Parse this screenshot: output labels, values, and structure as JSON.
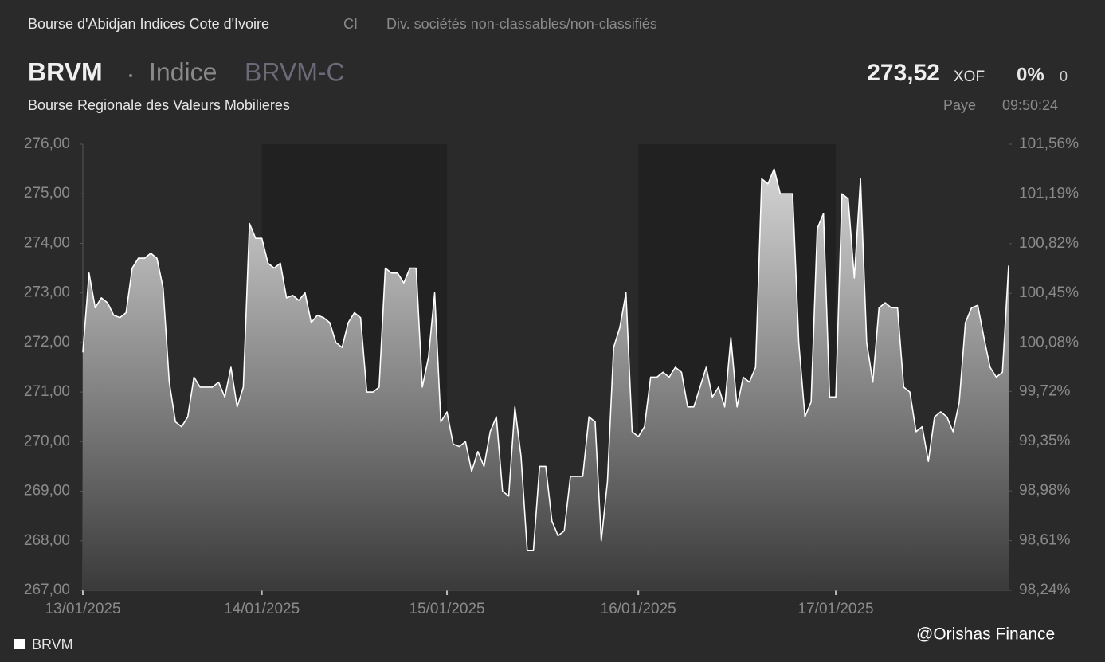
{
  "header": {
    "exchange": "Bourse d'Abidjan Indices Cote d'Ivoire",
    "country": "CI",
    "sector": "Div. sociétés non-classables/non-classifiés",
    "symbol": "BRVM",
    "instrument_type": "Indice",
    "code": "BRVM-C",
    "name": "Bourse Regionale des Valeurs Mobilieres",
    "price": "273,52",
    "currency": "XOF",
    "change_pct": "0%",
    "change": "0",
    "status": "Paye",
    "time": "09:50:24",
    "watermark": "@Orishas Finance"
  },
  "chart_data": {
    "type": "area",
    "xlim": [
      0,
      150
    ],
    "xticks": [
      {
        "value": 0,
        "label": "13/01/2025"
      },
      {
        "value": 29,
        "label": "14/01/2025"
      },
      {
        "value": 59,
        "label": "15/01/2025"
      },
      {
        "value": 90,
        "label": "16/01/2025"
      },
      {
        "value": 122,
        "label": "17/01/2025"
      }
    ],
    "ylim": [
      267,
      276
    ],
    "yticks": [
      {
        "value": 267,
        "label": "267,00"
      },
      {
        "value": 268,
        "label": "268,00"
      },
      {
        "value": 269,
        "label": "269,00"
      },
      {
        "value": 270,
        "label": "270,00"
      },
      {
        "value": 271,
        "label": "271,00"
      },
      {
        "value": 272,
        "label": "272,00"
      },
      {
        "value": 273,
        "label": "273,00"
      },
      {
        "value": 274,
        "label": "274,00"
      },
      {
        "value": 275,
        "label": "275,00"
      },
      {
        "value": 276,
        "label": "276,00"
      }
    ],
    "y2lim": [
      98.24,
      101.56
    ],
    "y2ticks": [
      {
        "value": 98.24,
        "label": "98,24%"
      },
      {
        "value": 98.61,
        "label": "98,61%"
      },
      {
        "value": 98.98,
        "label": "98,98%"
      },
      {
        "value": 99.35,
        "label": "99,35%"
      },
      {
        "value": 99.72,
        "label": "99,72%"
      },
      {
        "value": 100.08,
        "label": "100,08%"
      },
      {
        "value": 100.45,
        "label": "100,45%"
      },
      {
        "value": 100.82,
        "label": "100,82%"
      },
      {
        "value": 101.19,
        "label": "101,19%"
      },
      {
        "value": 101.56,
        "label": "101,56%"
      }
    ],
    "legend": "bottom-left",
    "series": [
      {
        "name": "BRVM",
        "color": "#ffffff",
        "values": [
          271.8,
          273.4,
          272.7,
          272.9,
          272.8,
          272.55,
          272.5,
          272.6,
          273.5,
          273.7,
          273.7,
          273.8,
          273.7,
          273.1,
          271.2,
          270.4,
          270.3,
          270.5,
          271.3,
          271.1,
          271.1,
          271.1,
          271.2,
          270.9,
          271.5,
          270.7,
          271.1,
          274.4,
          274.1,
          274.1,
          273.6,
          273.5,
          273.6,
          272.9,
          272.95,
          272.85,
          273.0,
          272.4,
          272.55,
          272.5,
          272.4,
          272.0,
          271.9,
          272.4,
          272.6,
          272.5,
          271.0,
          271.0,
          271.1,
          273.5,
          273.4,
          273.4,
          273.2,
          273.5,
          273.5,
          271.1,
          271.7,
          273.0,
          270.4,
          270.6,
          269.95,
          269.9,
          270.0,
          269.4,
          269.8,
          269.5,
          270.2,
          270.5,
          269.0,
          268.9,
          270.7,
          269.7,
          267.8,
          267.8,
          269.5,
          269.5,
          268.4,
          268.1,
          268.2,
          269.3,
          269.3,
          269.3,
          270.5,
          270.4,
          268.0,
          269.2,
          271.9,
          272.3,
          273.0,
          270.2,
          270.1,
          270.3,
          271.3,
          271.3,
          271.4,
          271.3,
          271.5,
          271.4,
          270.7,
          270.7,
          271.1,
          271.5,
          270.9,
          271.1,
          270.7,
          272.1,
          270.7,
          271.3,
          271.2,
          271.5,
          275.3,
          275.2,
          275.5,
          275.0,
          275.0,
          275.0,
          272.0,
          270.5,
          270.8,
          274.3,
          274.6,
          270.9,
          270.9,
          275.0,
          274.9,
          273.3,
          275.3,
          272.0,
          271.2,
          272.7,
          272.8,
          272.7,
          272.7,
          271.1,
          271.0,
          270.2,
          270.3,
          269.6,
          270.5,
          270.6,
          270.5,
          270.2,
          270.8,
          272.4,
          272.7,
          272.75,
          272.1,
          271.5,
          271.3,
          271.4,
          273.55
        ]
      }
    ]
  }
}
